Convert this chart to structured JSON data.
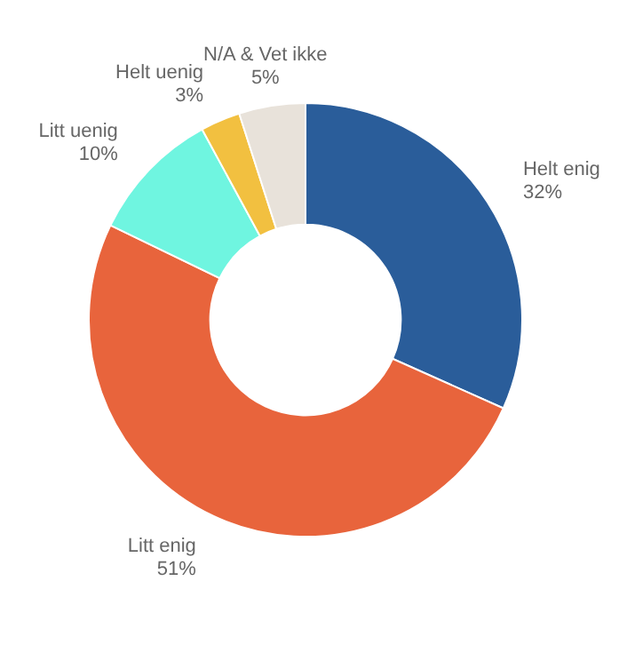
{
  "chart_data": {
    "type": "donut",
    "categories": [
      "Helt enig",
      "Litt enig",
      "Litt uenig",
      "Helt uenig",
      "N/A & Vet ikke"
    ],
    "values": [
      32,
      51,
      10,
      3,
      5
    ],
    "colors": [
      "#2a5d9a",
      "#e8643c",
      "#6ff5e0",
      "#f2c040",
      "#e8e2da"
    ],
    "value_labels": [
      "32%",
      "51%",
      "10%",
      "3%",
      "5%"
    ]
  }
}
